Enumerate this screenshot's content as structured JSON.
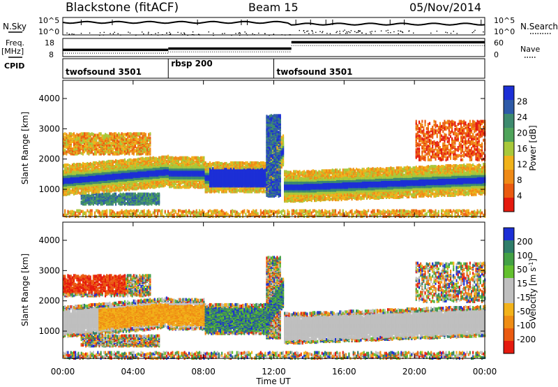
{
  "header": {
    "station": "Blackstone (fitACF)",
    "beam": "Beam 15",
    "date": "05/Nov/2014"
  },
  "left_labels": {
    "nsky": "N.Sky",
    "freq": "Freq.",
    "freq_unit": "[MHz]",
    "cpid": "CPID"
  },
  "right_labels": {
    "nsearch": "N.Search",
    "nave": "Nave"
  },
  "colors": {
    "power": [
      "#1c2fd6",
      "#2e5aa8",
      "#3d8a6e",
      "#4fa35a",
      "#a8c83a",
      "#f0b21a",
      "#ef8a16",
      "#ea5a10",
      "#e51a0e"
    ],
    "velocity": [
      "#1c2fd6",
      "#2f7d6a",
      "#43a145",
      "#63c02e",
      "#bfbfbf",
      "#bfbfbf",
      "#f2b21a",
      "#ef8d14",
      "#ea5a10",
      "#e51a0e"
    ]
  },
  "chart_data": [
    {
      "type": "line",
      "name": "noise",
      "y_ticks": [
        "10^5",
        "10^0"
      ],
      "y_ticks_right": [
        "10^5",
        "10^0"
      ]
    },
    {
      "type": "line",
      "name": "frequency-nave",
      "y_ticks": [
        "18",
        "8"
      ],
      "y_ticks_right": [
        "60",
        "0"
      ],
      "segments": [
        {
          "start_h": 0,
          "end_h": 6,
          "freq_level": 0.38
        },
        {
          "start_h": 6,
          "end_h": 13,
          "freq_level": 0.45
        },
        {
          "start_h": 13,
          "end_h": 24,
          "freq_level": 0.8
        }
      ]
    },
    {
      "type": "table",
      "name": "cpid",
      "entries": [
        {
          "label": "twofsound 3501",
          "start_h": 0
        },
        {
          "label": "rbsp 200",
          "start_h": 6
        },
        {
          "label": "twofsound 3501",
          "start_h": 12
        }
      ]
    },
    {
      "type": "heatmap",
      "name": "power",
      "ylabel": "Slant Range [km]",
      "y_ticks": [
        1000,
        2000,
        3000,
        4000
      ],
      "ylim": [
        100,
        4600
      ],
      "xlim": [
        0,
        24
      ],
      "colorbar_label": "Power [dB]",
      "colorbar_ticks": [
        "28",
        "24",
        "20",
        "16",
        "12",
        "8",
        "4"
      ]
    },
    {
      "type": "heatmap",
      "name": "velocity",
      "ylabel": "Slant Range [km]",
      "xlabel": "Time UT",
      "y_ticks": [
        1000,
        2000,
        3000,
        4000
      ],
      "ylim": [
        100,
        4600
      ],
      "xlim": [
        0,
        24
      ],
      "x_ticks": [
        "00:00",
        "04:00",
        "08:00",
        "12:00",
        "16:00",
        "20:00",
        "00:00"
      ],
      "colorbar_label": "Velocity [m s",
      "colorbar_label_sup": "-1",
      "colorbar_ticks": [
        "200",
        "100",
        "50",
        "15",
        "-15",
        "-50",
        "-100",
        "-200"
      ]
    }
  ]
}
